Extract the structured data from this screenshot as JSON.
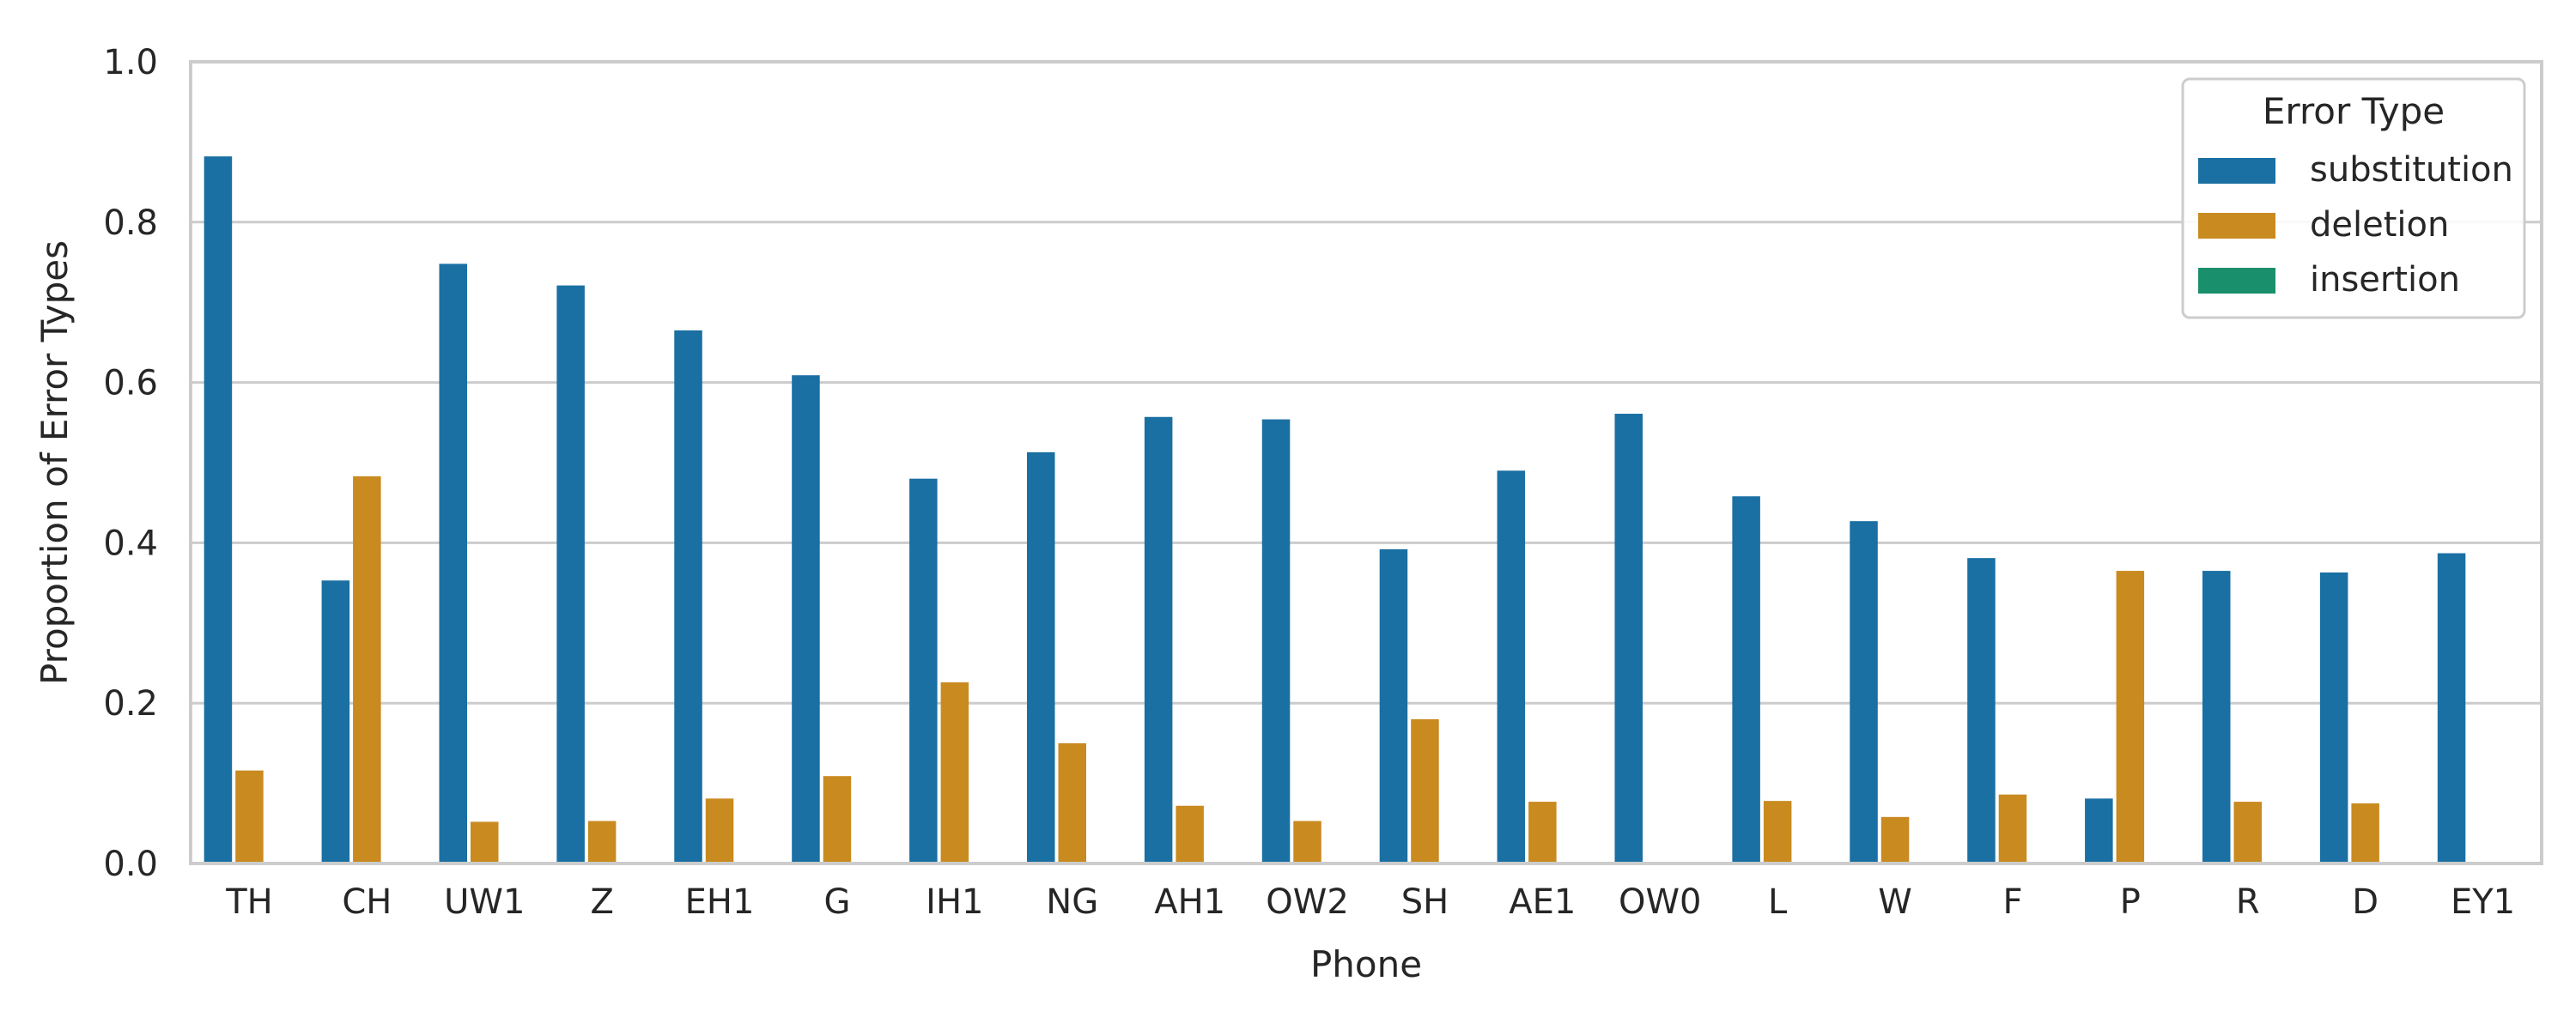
{
  "chart_data": {
    "type": "bar",
    "title": "",
    "xlabel": "Phone",
    "ylabel": "Proportion of Error Types",
    "ylim": [
      0,
      1
    ],
    "yticks": [
      "0.0",
      "0.2",
      "0.4",
      "0.6",
      "0.8",
      "1.0"
    ],
    "grid": "horizontal",
    "legend": {
      "title": "Error Type",
      "placement": "top-right"
    },
    "categories": [
      "TH",
      "CH",
      "UW1",
      "Z",
      "EH1",
      "G",
      "IH1",
      "NG",
      "AH1",
      "OW2",
      "SH",
      "AE1",
      "OW0",
      "L",
      "W",
      "F",
      "P",
      "R",
      "D",
      "EY1"
    ],
    "series": [
      {
        "name": "substitution",
        "color": "#1a6fa3",
        "values": [
          0.882,
          0.353,
          0.748,
          0.721,
          0.665,
          0.609,
          0.48,
          0.513,
          0.557,
          0.554,
          0.392,
          0.49,
          0.561,
          0.458,
          0.427,
          0.381,
          0.081,
          0.365,
          0.363,
          0.387
        ]
      },
      {
        "name": "deletion",
        "color": "#c98a20",
        "values": [
          0.116,
          0.483,
          0.052,
          0.053,
          0.081,
          0.109,
          0.226,
          0.15,
          0.072,
          0.053,
          0.18,
          0.077,
          0.0,
          0.078,
          0.058,
          0.086,
          0.365,
          0.077,
          0.075,
          0.0
        ]
      },
      {
        "name": "insertion",
        "color": "#1a8f6b",
        "values": [
          0,
          0,
          0,
          0,
          0,
          0,
          0,
          0,
          0,
          0,
          0,
          0,
          0,
          0,
          0,
          0,
          0,
          0,
          0,
          0
        ]
      }
    ]
  }
}
